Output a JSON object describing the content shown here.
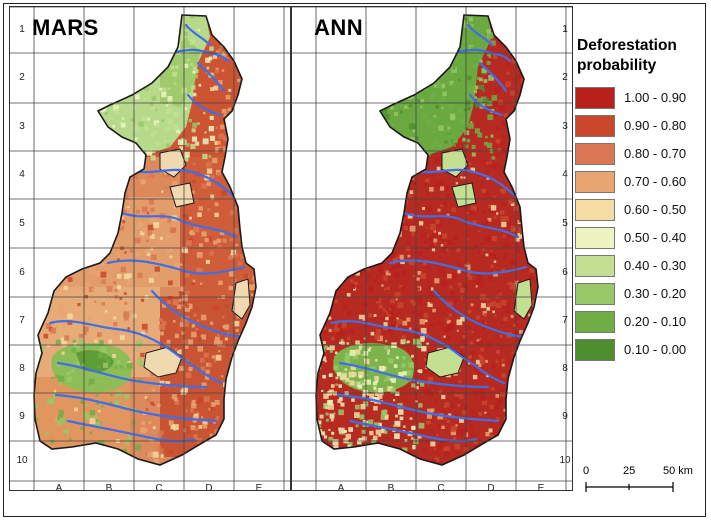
{
  "panels": [
    {
      "title": "MARS",
      "mode": "smooth"
    },
    {
      "title": "ANN",
      "mode": "patchy"
    }
  ],
  "row_labels": [
    "1",
    "2",
    "3",
    "4",
    "5",
    "6",
    "7",
    "8",
    "9",
    "10"
  ],
  "col_labels": [
    "A",
    "B",
    "C",
    "D",
    "E"
  ],
  "legend": {
    "title_line1": "Deforestation",
    "title_line2": "probability",
    "items": [
      {
        "label": "1.00 - 0.90",
        "color": "#b8201c"
      },
      {
        "label": "0.90 - 0.80",
        "color": "#c9472b"
      },
      {
        "label": "0.80 - 0.70",
        "color": "#d97752"
      },
      {
        "label": "0.70 - 0.60",
        "color": "#e8a572"
      },
      {
        "label": "0.60 - 0.50",
        "color": "#f4dca2"
      },
      {
        "label": "0.50 - 0.40",
        "color": "#eef4c0"
      },
      {
        "label": "0.40 - 0.30",
        "color": "#c4de92"
      },
      {
        "label": "0.30 - 0.20",
        "color": "#98c867"
      },
      {
        "label": "0.20 - 0.10",
        "color": "#6fae45"
      },
      {
        "label": "0.10 - 0.00",
        "color": "#4d8f2e"
      }
    ]
  },
  "scale": {
    "labels": [
      "0",
      "25",
      "50 km"
    ]
  },
  "colors": {
    "river": "#3f6fe8",
    "outline": "#1a1a1a",
    "grid": "#444444"
  }
}
